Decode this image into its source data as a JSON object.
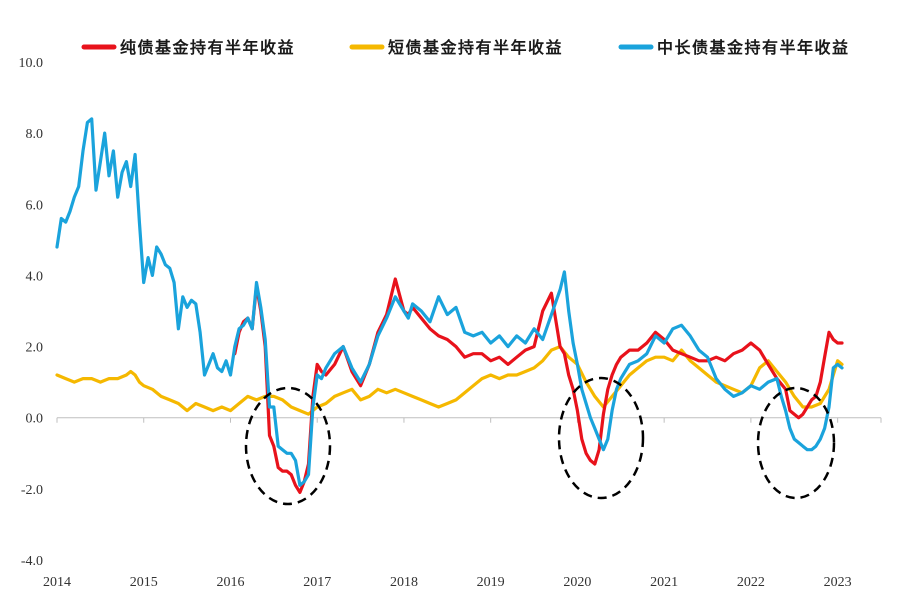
{
  "chart_data": {
    "type": "line",
    "title": "",
    "xlabel": "",
    "ylabel": "",
    "ylim": [
      -4.0,
      10.0
    ],
    "y_ticks": [
      "10.0",
      "8.0",
      "6.0",
      "4.0",
      "2.0",
      "0.0",
      "-2.0",
      "-4.0"
    ],
    "xlim": [
      2014.0,
      2023.5
    ],
    "x_ticks": [
      "2014",
      "2015",
      "2016",
      "2017",
      "2018",
      "2019",
      "2020",
      "2021",
      "2022",
      "2023"
    ],
    "grid": false,
    "legend_position": "top",
    "series": [
      {
        "name": "纯债基金持有半年收益",
        "color": "#e8121b",
        "x": [
          2016.05,
          2016.1,
          2016.15,
          2016.2,
          2016.25,
          2016.3,
          2016.35,
          2016.4,
          2016.45,
          2016.5,
          2016.55,
          2016.6,
          2016.65,
          2016.7,
          2016.75,
          2016.8,
          2016.85,
          2016.9,
          2016.95,
          2017.0,
          2017.05,
          2017.1,
          2017.2,
          2017.3,
          2017.4,
          2017.5,
          2017.6,
          2017.7,
          2017.8,
          2017.9,
          2018.0,
          2018.05,
          2018.1,
          2018.2,
          2018.3,
          2018.4,
          2018.5,
          2018.6,
          2018.7,
          2018.8,
          2018.9,
          2019.0,
          2019.1,
          2019.2,
          2019.3,
          2019.4,
          2019.5,
          2019.6,
          2019.7,
          2019.8,
          2019.85,
          2019.9,
          2019.95,
          2020.0,
          2020.05,
          2020.1,
          2020.15,
          2020.2,
          2020.25,
          2020.3,
          2020.35,
          2020.4,
          2020.45,
          2020.5,
          2020.55,
          2020.6,
          2020.7,
          2020.8,
          2020.9,
          2021.0,
          2021.1,
          2021.2,
          2021.3,
          2021.4,
          2021.5,
          2021.6,
          2021.7,
          2021.8,
          2021.9,
          2022.0,
          2022.1,
          2022.2,
          2022.3,
          2022.4,
          2022.45,
          2022.5,
          2022.55,
          2022.6,
          2022.65,
          2022.7,
          2022.75,
          2022.8,
          2022.85,
          2022.9,
          2022.95,
          2023.0,
          2023.05
        ],
        "values": [
          1.8,
          2.4,
          2.7,
          2.8,
          2.5,
          3.7,
          3.0,
          2.0,
          -0.5,
          -0.8,
          -1.4,
          -1.5,
          -1.5,
          -1.6,
          -1.9,
          -2.1,
          -1.8,
          -1.3,
          0.6,
          1.5,
          1.3,
          1.2,
          1.5,
          2.0,
          1.3,
          0.9,
          1.5,
          2.4,
          2.9,
          3.9,
          3.0,
          2.9,
          3.1,
          2.8,
          2.5,
          2.3,
          2.2,
          2.0,
          1.7,
          1.8,
          1.8,
          1.6,
          1.7,
          1.5,
          1.7,
          1.9,
          2.0,
          3.0,
          3.5,
          2.0,
          1.8,
          1.2,
          0.8,
          0.2,
          -0.6,
          -1.0,
          -1.2,
          -1.3,
          -0.9,
          0.1,
          0.8,
          1.2,
          1.5,
          1.7,
          1.8,
          1.9,
          1.9,
          2.1,
          2.4,
          2.2,
          1.9,
          1.8,
          1.7,
          1.6,
          1.6,
          1.7,
          1.6,
          1.8,
          1.9,
          2.1,
          1.9,
          1.5,
          1.1,
          0.8,
          0.2,
          0.1,
          0.0,
          0.1,
          0.3,
          0.5,
          0.6,
          1.0,
          1.7,
          2.4,
          2.2,
          2.1,
          2.1
        ]
      },
      {
        "name": "短债基金持有半年收益",
        "color": "#f5b800",
        "x": [
          2014.0,
          2014.1,
          2014.2,
          2014.3,
          2014.4,
          2014.5,
          2014.6,
          2014.7,
          2014.8,
          2014.85,
          2014.9,
          2014.95,
          2015.0,
          2015.1,
          2015.2,
          2015.3,
          2015.4,
          2015.5,
          2015.6,
          2015.7,
          2015.8,
          2015.9,
          2016.0,
          2016.1,
          2016.2,
          2016.3,
          2016.4,
          2016.5,
          2016.6,
          2016.7,
          2016.8,
          2016.9,
          2017.0,
          2017.1,
          2017.2,
          2017.3,
          2017.4,
          2017.5,
          2017.6,
          2017.7,
          2017.8,
          2017.9,
          2018.0,
          2018.1,
          2018.2,
          2018.3,
          2018.4,
          2018.5,
          2018.6,
          2018.7,
          2018.8,
          2018.9,
          2019.0,
          2019.1,
          2019.2,
          2019.3,
          2019.4,
          2019.5,
          2019.6,
          2019.7,
          2019.8,
          2019.9,
          2020.0,
          2020.1,
          2020.2,
          2020.3,
          2020.4,
          2020.5,
          2020.6,
          2020.7,
          2020.8,
          2020.9,
          2021.0,
          2021.1,
          2021.2,
          2021.3,
          2021.4,
          2021.5,
          2021.6,
          2021.7,
          2021.8,
          2021.9,
          2022.0,
          2022.1,
          2022.2,
          2022.3,
          2022.4,
          2022.5,
          2022.6,
          2022.7,
          2022.8,
          2022.9,
          2023.0,
          2023.05
        ],
        "values": [
          1.2,
          1.1,
          1.0,
          1.1,
          1.1,
          1.0,
          1.1,
          1.1,
          1.2,
          1.3,
          1.2,
          1.0,
          0.9,
          0.8,
          0.6,
          0.5,
          0.4,
          0.2,
          0.4,
          0.3,
          0.2,
          0.3,
          0.2,
          0.4,
          0.6,
          0.5,
          0.6,
          0.6,
          0.5,
          0.3,
          0.2,
          0.1,
          0.3,
          0.4,
          0.6,
          0.7,
          0.8,
          0.5,
          0.6,
          0.8,
          0.7,
          0.8,
          0.7,
          0.6,
          0.5,
          0.4,
          0.3,
          0.4,
          0.5,
          0.7,
          0.9,
          1.1,
          1.2,
          1.1,
          1.2,
          1.2,
          1.3,
          1.4,
          1.6,
          1.9,
          2.0,
          1.7,
          1.5,
          1.0,
          0.6,
          0.3,
          0.6,
          0.9,
          1.2,
          1.4,
          1.6,
          1.7,
          1.7,
          1.6,
          1.9,
          1.6,
          1.4,
          1.2,
          1.0,
          0.9,
          0.8,
          0.7,
          0.9,
          1.4,
          1.6,
          1.3,
          1.0,
          0.6,
          0.3,
          0.3,
          0.4,
          0.8,
          1.6,
          1.5
        ]
      },
      {
        "name": "中长债基金持有半年收益",
        "color": "#1aa3dc",
        "x": [
          2014.0,
          2014.05,
          2014.1,
          2014.15,
          2014.2,
          2014.25,
          2014.3,
          2014.35,
          2014.4,
          2014.45,
          2014.5,
          2014.55,
          2014.6,
          2014.65,
          2014.7,
          2014.75,
          2014.8,
          2014.85,
          2014.9,
          2014.95,
          2015.0,
          2015.05,
          2015.1,
          2015.15,
          2015.2,
          2015.25,
          2015.3,
          2015.35,
          2015.4,
          2015.45,
          2015.5,
          2015.55,
          2015.6,
          2015.65,
          2015.7,
          2015.75,
          2015.8,
          2015.85,
          2015.9,
          2015.95,
          2016.0,
          2016.05,
          2016.1,
          2016.15,
          2016.2,
          2016.25,
          2016.3,
          2016.35,
          2016.4,
          2016.45,
          2016.5,
          2016.55,
          2016.6,
          2016.65,
          2016.7,
          2016.75,
          2016.8,
          2016.85,
          2016.9,
          2016.95,
          2017.0,
          2017.05,
          2017.1,
          2017.2,
          2017.3,
          2017.4,
          2017.5,
          2017.6,
          2017.7,
          2017.8,
          2017.9,
          2018.0,
          2018.05,
          2018.1,
          2018.2,
          2018.3,
          2018.4,
          2018.5,
          2018.6,
          2018.7,
          2018.8,
          2018.9,
          2019.0,
          2019.1,
          2019.2,
          2019.3,
          2019.4,
          2019.5,
          2019.6,
          2019.7,
          2019.8,
          2019.85,
          2019.9,
          2019.95,
          2020.0,
          2020.05,
          2020.1,
          2020.15,
          2020.2,
          2020.25,
          2020.3,
          2020.35,
          2020.4,
          2020.45,
          2020.5,
          2020.55,
          2020.6,
          2020.7,
          2020.8,
          2020.9,
          2021.0,
          2021.1,
          2021.2,
          2021.3,
          2021.4,
          2021.5,
          2021.6,
          2021.7,
          2021.8,
          2021.9,
          2022.0,
          2022.1,
          2022.2,
          2022.3,
          2022.35,
          2022.4,
          2022.45,
          2022.5,
          2022.55,
          2022.6,
          2022.65,
          2022.7,
          2022.75,
          2022.8,
          2022.85,
          2022.9,
          2022.95,
          2023.0,
          2023.05
        ],
        "values": [
          4.8,
          5.6,
          5.5,
          5.8,
          6.2,
          6.5,
          7.5,
          8.3,
          8.4,
          6.4,
          7.2,
          8.0,
          6.8,
          7.5,
          6.2,
          6.9,
          7.2,
          6.5,
          7.4,
          5.5,
          3.8,
          4.5,
          4.0,
          4.8,
          4.6,
          4.3,
          4.2,
          3.8,
          2.5,
          3.4,
          3.1,
          3.3,
          3.2,
          2.4,
          1.2,
          1.5,
          1.8,
          1.4,
          1.3,
          1.6,
          1.2,
          2.0,
          2.5,
          2.6,
          2.8,
          2.5,
          3.8,
          3.1,
          2.2,
          0.3,
          0.3,
          -0.8,
          -0.9,
          -1.0,
          -1.0,
          -1.2,
          -1.9,
          -1.8,
          -1.6,
          0.3,
          1.2,
          1.1,
          1.4,
          1.8,
          2.0,
          1.4,
          1.0,
          1.5,
          2.3,
          2.8,
          3.4,
          3.0,
          2.8,
          3.2,
          3.0,
          2.7,
          3.4,
          2.9,
          3.1,
          2.4,
          2.3,
          2.4,
          2.1,
          2.3,
          2.0,
          2.3,
          2.1,
          2.5,
          2.2,
          2.9,
          3.6,
          4.1,
          3.0,
          2.1,
          1.5,
          0.8,
          0.4,
          0.0,
          -0.3,
          -0.6,
          -0.9,
          -0.6,
          0.2,
          0.8,
          1.1,
          1.3,
          1.5,
          1.6,
          1.8,
          2.3,
          2.1,
          2.5,
          2.6,
          2.3,
          1.9,
          1.7,
          1.1,
          0.8,
          0.6,
          0.7,
          0.9,
          0.8,
          1.0,
          1.1,
          0.6,
          0.2,
          -0.3,
          -0.6,
          -0.7,
          -0.8,
          -0.9,
          -0.9,
          -0.8,
          -0.6,
          -0.3,
          0.3,
          1.4,
          1.5,
          1.4
        ]
      }
    ]
  }
}
